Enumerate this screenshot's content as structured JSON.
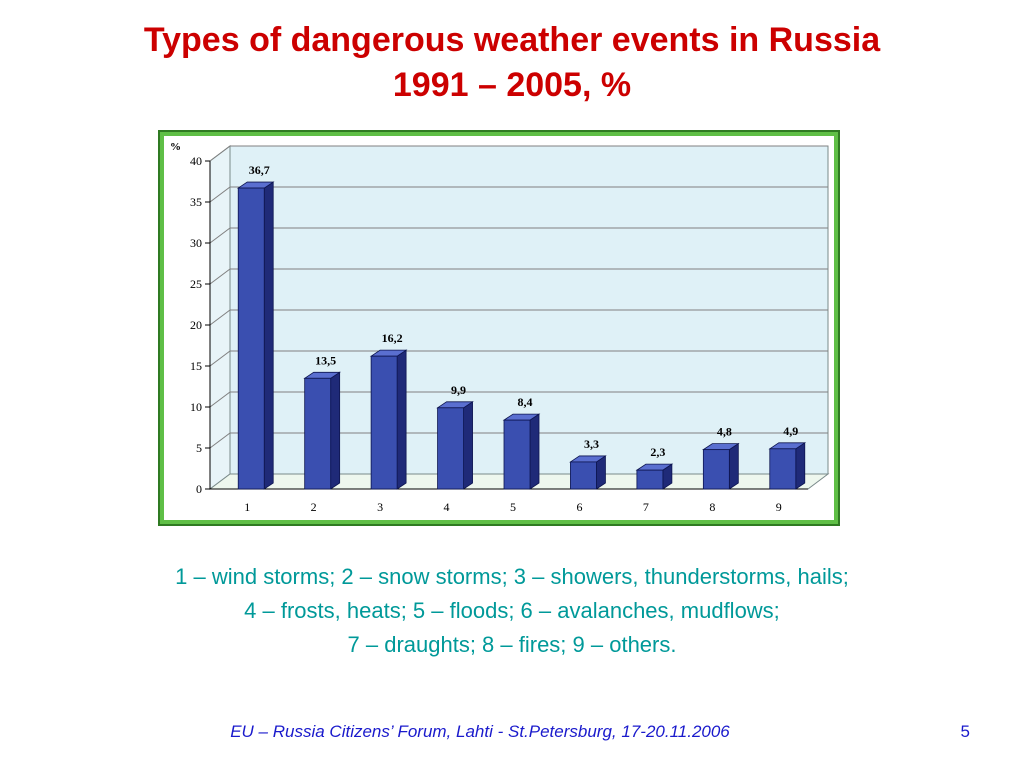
{
  "slide": {
    "title_line1": "Types of dangerous weather events in Russia",
    "title_line2": "1991 – 2005, %",
    "legend_line1": "1 – wind storms;  2 – snow storms;  3 – showers, thunderstorms, hails;",
    "legend_line2": "4 – frosts, heats;  5 – floods;  6 – avalanches, mudflows;",
    "legend_line3": "7 – draughts;  8 – fires;  9 – others.",
    "footer": "EU – Russia Citizens’ Forum, Lahti  - St.Petersburg, 17-20.11.2006",
    "page_number": "5"
  },
  "chart_data": {
    "type": "bar",
    "ylabel": "%",
    "categories": [
      "1",
      "2",
      "3",
      "4",
      "5",
      "6",
      "7",
      "8",
      "9"
    ],
    "values": [
      36.7,
      13.5,
      16.2,
      9.9,
      8.4,
      3.3,
      2.3,
      4.8,
      4.9
    ],
    "value_labels": [
      "36,7",
      "13,5",
      "16,2",
      "9,9",
      "8,4",
      "3,3",
      "2,3",
      "4,8",
      "4,9"
    ],
    "y_ticks": [
      "0",
      "5",
      "10",
      "15",
      "20",
      "25",
      "30",
      "35",
      "40"
    ],
    "ylim": [
      0,
      40
    ],
    "grid": true,
    "colors": {
      "frame": "#5fbf46",
      "plot_bg": "#dff1f7",
      "bar_front": "#3a4fb0",
      "bar_side": "#1f2a78",
      "bar_top": "#5a6fd0",
      "gridline": "#808080"
    }
  }
}
